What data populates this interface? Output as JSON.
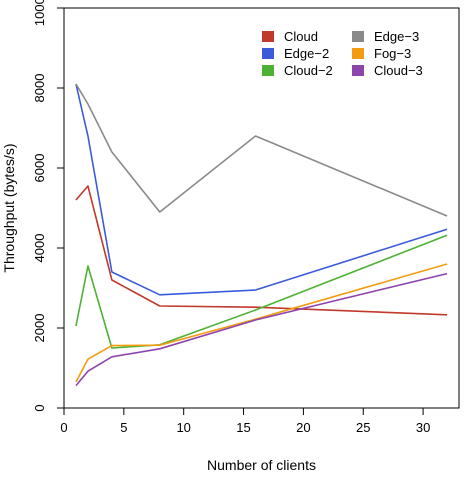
{
  "chart_data": {
    "type": "line",
    "title": "",
    "xlabel": "Number of clients",
    "ylabel": "Throughput (bytes/s)",
    "xlim": [
      0,
      33
    ],
    "ylim": [
      0,
      10000
    ],
    "x_ticks": [
      0,
      5,
      10,
      15,
      20,
      25,
      30
    ],
    "y_ticks": [
      0,
      2000,
      4000,
      6000,
      8000,
      10000
    ],
    "grid": false,
    "legend_position": "top-right",
    "legend_columns": 2,
    "series": [
      {
        "name": "Cloud",
        "color": "#c0392b",
        "x": [
          1,
          2,
          4,
          8,
          16,
          32
        ],
        "y": [
          5200,
          5550,
          3200,
          2550,
          2520,
          2330
        ]
      },
      {
        "name": "Edge−2",
        "color": "#3b5bdb",
        "x": [
          1,
          2,
          4,
          8,
          16,
          32
        ],
        "y": [
          8100,
          6800,
          3400,
          2830,
          2950,
          4470
        ]
      },
      {
        "name": "Cloud−2",
        "color": "#4db233",
        "x": [
          1,
          2,
          4,
          8,
          16,
          32
        ],
        "y": [
          2050,
          3550,
          1500,
          1580,
          2450,
          4320
        ]
      },
      {
        "name": "Edge−3",
        "color": "#8a8a8a",
        "x": [
          1,
          2,
          4,
          8,
          16,
          32
        ],
        "y": [
          8100,
          7600,
          6400,
          4900,
          6800,
          4800
        ]
      },
      {
        "name": "Fog−3",
        "color": "#f39c12",
        "x": [
          1,
          2,
          4,
          8,
          16,
          32
        ],
        "y": [
          650,
          1220,
          1560,
          1570,
          2220,
          3600
        ]
      },
      {
        "name": "Cloud−3",
        "color": "#8e44ad",
        "x": [
          1,
          2,
          4,
          8,
          16,
          32
        ],
        "y": [
          560,
          920,
          1280,
          1480,
          2200,
          3360
        ]
      }
    ]
  }
}
